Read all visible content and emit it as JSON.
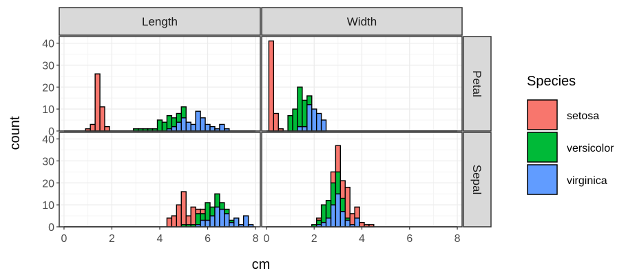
{
  "chart_data": {
    "type": "bar",
    "subtype": "faceted stacked histogram",
    "xlabel": "cm",
    "ylabel": "count",
    "xlim": [
      -0.2,
      8.2
    ],
    "ylim": [
      0,
      43
    ],
    "x_ticks": [
      0,
      2,
      4,
      6,
      8
    ],
    "y_ticks": [
      0,
      10,
      20,
      30,
      40
    ],
    "bin_width": 0.2,
    "facet_columns": [
      "Length",
      "Width"
    ],
    "facet_rows": [
      "Petal",
      "Sepal"
    ],
    "grid": true,
    "legend": {
      "title": "Species",
      "position": "right",
      "entries": [
        "setosa",
        "versicolor",
        "virginica"
      ]
    },
    "colors": {
      "setosa": "#F8766D",
      "versicolor": "#00BA38",
      "virginica": "#619CFF"
    },
    "panels": [
      {
        "column": "Length",
        "row": "Petal",
        "series": [
          {
            "name": "setosa",
            "bars": [
              [
                1.0,
                1
              ],
              [
                1.2,
                3
              ],
              [
                1.4,
                26
              ],
              [
                1.6,
                11
              ],
              [
                1.8,
                2
              ]
            ]
          },
          {
            "name": "versicolor",
            "bars": [
              [
                3.0,
                1
              ],
              [
                3.2,
                1
              ],
              [
                3.4,
                1
              ],
              [
                3.6,
                1
              ],
              [
                3.8,
                1
              ],
              [
                4.0,
                5
              ],
              [
                4.2,
                4
              ],
              [
                4.4,
                6
              ],
              [
                4.6,
                4
              ],
              [
                4.8,
                4
              ],
              [
                5.0,
                5
              ],
              [
                5.2,
                0
              ]
            ]
          },
          {
            "name": "virginica",
            "bars": [
              [
                4.4,
                1
              ],
              [
                4.6,
                2
              ],
              [
                4.8,
                4
              ],
              [
                5.0,
                6
              ],
              [
                5.2,
                4
              ],
              [
                5.4,
                3
              ],
              [
                5.6,
                9
              ],
              [
                5.8,
                6
              ],
              [
                6.0,
                3
              ],
              [
                6.2,
                2
              ],
              [
                6.4,
                1
              ],
              [
                6.6,
                3
              ],
              [
                6.8,
                1
              ]
            ]
          }
        ]
      },
      {
        "column": "Width",
        "row": "Petal",
        "series": [
          {
            "name": "setosa",
            "bars": [
              [
                0.2,
                41
              ],
              [
                0.4,
                8
              ],
              [
                0.6,
                1
              ]
            ]
          },
          {
            "name": "versicolor",
            "bars": [
              [
                1.0,
                7
              ],
              [
                1.2,
                10
              ],
              [
                1.4,
                18
              ],
              [
                1.6,
                12
              ],
              [
                1.8,
                4
              ]
            ]
          },
          {
            "name": "virginica",
            "bars": [
              [
                1.4,
                2
              ],
              [
                1.6,
                2
              ],
              [
                1.8,
                12
              ],
              [
                2.0,
                10
              ],
              [
                2.2,
                8
              ],
              [
                2.4,
                5
              ]
            ]
          }
        ]
      },
      {
        "column": "Length",
        "row": "Sepal",
        "series": [
          {
            "name": "setosa",
            "bars": [
              [
                4.4,
                4
              ],
              [
                4.6,
                5
              ],
              [
                4.8,
                10
              ],
              [
                5.0,
                15
              ],
              [
                5.2,
                4
              ],
              [
                5.4,
                8
              ],
              [
                5.6,
                2
              ],
              [
                5.8,
                2
              ]
            ]
          },
          {
            "name": "versicolor",
            "bars": [
              [
                5.0,
                1
              ],
              [
                5.2,
                1
              ],
              [
                5.4,
                1
              ],
              [
                5.6,
                5
              ],
              [
                5.8,
                3
              ],
              [
                6.0,
                8
              ],
              [
                6.2,
                4
              ],
              [
                6.4,
                6
              ],
              [
                6.6,
                3
              ],
              [
                6.8,
                2
              ],
              [
                7.0,
                1
              ]
            ]
          },
          {
            "name": "virginica",
            "bars": [
              [
                5.0,
                0
              ],
              [
                5.6,
                1
              ],
              [
                5.8,
                3
              ],
              [
                6.0,
                3
              ],
              [
                6.2,
                5
              ],
              [
                6.4,
                9
              ],
              [
                6.6,
                8
              ],
              [
                6.8,
                6
              ],
              [
                7.0,
                2
              ],
              [
                7.2,
                4
              ],
              [
                7.4,
                1
              ],
              [
                7.6,
                5
              ],
              [
                7.8,
                1
              ]
            ]
          }
        ]
      },
      {
        "column": "Width",
        "row": "Sepal",
        "series": [
          {
            "name": "setosa",
            "bars": [
              [
                2.2,
                1
              ],
              [
                2.8,
                5
              ],
              [
                3.0,
                12
              ],
              [
                3.2,
                8
              ],
              [
                3.4,
                14
              ],
              [
                3.6,
                5
              ],
              [
                3.8,
                5
              ],
              [
                4.0,
                2
              ],
              [
                4.2,
                1
              ],
              [
                4.4,
                1
              ]
            ]
          },
          {
            "name": "versicolor",
            "bars": [
              [
                2.0,
                1
              ],
              [
                2.2,
                2
              ],
              [
                2.4,
                8
              ],
              [
                2.6,
                8
              ],
              [
                2.8,
                10
              ],
              [
                3.0,
                10
              ],
              [
                3.2,
                6
              ],
              [
                3.4,
                1
              ]
            ]
          },
          {
            "name": "virginica",
            "bars": [
              [
                2.2,
                1
              ],
              [
                2.4,
                2
              ],
              [
                2.6,
                4
              ],
              [
                2.8,
                10
              ],
              [
                3.0,
                15
              ],
              [
                3.2,
                7
              ],
              [
                3.4,
                3
              ],
              [
                3.6,
                1
              ],
              [
                3.8,
                4
              ]
            ]
          }
        ]
      }
    ]
  }
}
